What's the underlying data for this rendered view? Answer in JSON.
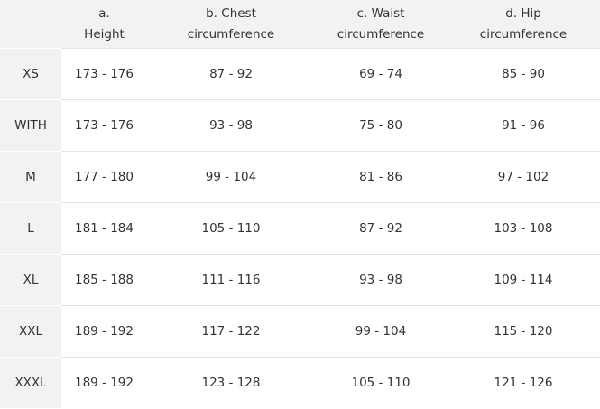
{
  "table": {
    "header": [
      [
        "a.",
        "Height"
      ],
      [
        "b. Chest",
        "circumference"
      ],
      [
        "c. Waist",
        "circumference"
      ],
      [
        "d. Hip",
        "circumference"
      ]
    ],
    "rows": [
      [
        "XS",
        "173 - 176",
        "87 - 92",
        "69 - 74",
        "85 - 90"
      ],
      [
        "WITH",
        "173 - 176",
        "93 - 98",
        "75 - 80",
        "91 - 96"
      ],
      [
        "M",
        "177 - 180",
        "99 - 104",
        "81 - 86",
        "97 - 102"
      ],
      [
        "L",
        "181 - 184",
        "105 - 110",
        "87 - 92",
        "103 - 108"
      ],
      [
        "XL",
        "185 - 188",
        "111 - 116",
        "93 - 98",
        "109 - 114"
      ],
      [
        "XXL",
        "189 - 192",
        "117 - 122",
        "99 - 104",
        "115 - 120"
      ],
      [
        "XXXL",
        "189 - 192",
        "123 - 128",
        "105 - 110",
        "121 - 126"
      ]
    ]
  }
}
